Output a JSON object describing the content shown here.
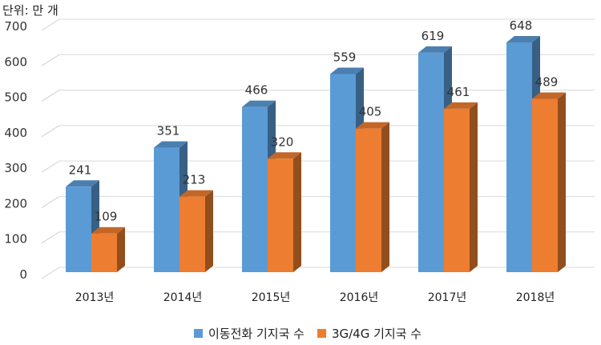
{
  "chart_data": {
    "type": "bar",
    "unit_label": "단위: 만 개",
    "categories": [
      "2013년",
      "2014년",
      "2015년",
      "2016년",
      "2017년",
      "2018년"
    ],
    "series": [
      {
        "name": "이동전화 기지국 수",
        "values": [
          241,
          351,
          466,
          559,
          619,
          648
        ],
        "color": "#5B9BD5"
      },
      {
        "name": "3G/4G 기지국 수",
        "values": [
          109,
          213,
          320,
          405,
          461,
          489
        ],
        "color": "#ED7D31"
      }
    ],
    "ylim": [
      0,
      700
    ],
    "yticks": [
      0,
      100,
      200,
      300,
      400,
      500,
      600,
      700
    ],
    "grid": true,
    "legend_position": "bottom",
    "style": "3d-clustered-column"
  }
}
